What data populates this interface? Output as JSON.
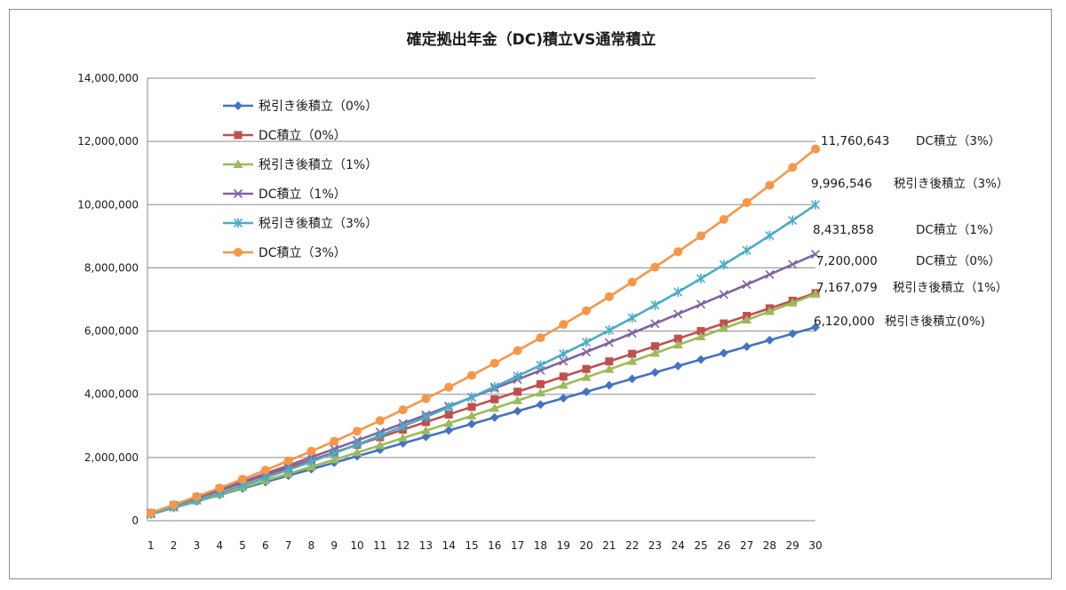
{
  "chart_data": {
    "type": "line",
    "title": "確定拠出年金（DC)積立VS通常積立",
    "xlabel": "",
    "ylabel": "",
    "categories": [
      "1",
      "2",
      "3",
      "4",
      "5",
      "6",
      "7",
      "8",
      "9",
      "10",
      "11",
      "12",
      "13",
      "14",
      "15",
      "16",
      "17",
      "18",
      "19",
      "20",
      "21",
      "22",
      "23",
      "24",
      "25",
      "26",
      "27",
      "28",
      "29",
      "30"
    ],
    "y_ticks": [
      "0",
      "2,000,000",
      "4,000,000",
      "6,000,000",
      "8,000,000",
      "10,000,000",
      "12,000,000",
      "14,000,000"
    ],
    "ylim": [
      0,
      14000000
    ],
    "grid": "horizontal",
    "legend_position": "top-left",
    "series": [
      {
        "name": "税引き後積立（0%）",
        "color": "#4472c4",
        "marker": "diamond",
        "end_value_label": "6,120,000",
        "end_series_label": "税引き後積立(0%)",
        "values": [
          204000,
          408000,
          612000,
          816000,
          1020000,
          1224000,
          1428000,
          1632000,
          1836000,
          2040000,
          2244000,
          2448000,
          2652000,
          2856000,
          3060000,
          3264000,
          3468000,
          3672000,
          3876000,
          4080000,
          4284000,
          4488000,
          4692000,
          4896000,
          5100000,
          5304000,
          5508000,
          5712000,
          5916000,
          6120000
        ]
      },
      {
        "name": "DC積立（0%）",
        "color": "#c0504d",
        "marker": "square",
        "end_value_label": "7,200,000",
        "end_series_label": "DC積立（0%）",
        "values": [
          240000,
          480000,
          720000,
          960000,
          1200000,
          1440000,
          1680000,
          1920000,
          2160000,
          2400000,
          2640000,
          2880000,
          3120000,
          3360000,
          3600000,
          3840000,
          4080000,
          4320000,
          4560000,
          4800000,
          5040000,
          5280000,
          5520000,
          5760000,
          6000000,
          6240000,
          6480000,
          6720000,
          6960000,
          7200000
        ]
      },
      {
        "name": "税引き後積立（1%）",
        "color": "#9bbb59",
        "marker": "triangle",
        "end_value_label": "7,167,079",
        "end_series_label": "税引き後積立（1%）",
        "values": [
          206040,
          414141,
          624322,
          836606,
          1051012,
          1267562,
          1486278,
          1707181,
          1930293,
          2155636,
          2383232,
          2613105,
          2845276,
          3079768,
          3316606,
          3555812,
          3797410,
          4041424,
          4287878,
          4536797,
          4788205,
          5042127,
          5298589,
          5557615,
          5819231,
          6083463,
          6350338,
          6619881,
          6892120,
          7167079
        ]
      },
      {
        "name": "DC積立（1%）",
        "color": "#8064a2",
        "marker": "x",
        "end_value_label": "8,431,858",
        "end_series_label": "DC積立（1%）",
        "values": [
          242400,
          487224,
          734496,
          984241,
          1236483,
          1491248,
          1748561,
          2008446,
          2270931,
          2536040,
          2803800,
          3074238,
          3347381,
          3623254,
          3901887,
          4183306,
          4467539,
          4754614,
          5044560,
          5337406,
          5633180,
          5931912,
          6233631,
          6538367,
          6846151,
          7157012,
          7470983,
          7788092,
          8108373,
          8431858
        ]
      },
      {
        "name": "税引き後積立（3%）",
        "color": "#4bacc6",
        "marker": "star",
        "end_value_label": "9,996,546",
        "end_series_label": "税引き後積立（3%）",
        "values": [
          210120,
          426544,
          649460,
          879064,
          1115556,
          1359143,
          1610037,
          1868458,
          2134632,
          2408791,
          2691175,
          2982031,
          3281612,
          3590181,
          3908006,
          4235366,
          4572547,
          4919843,
          5277558,
          5646005,
          6025505,
          6416390,
          6819002,
          7233692,
          7660823,
          8100768,
          8553911,
          9020648,
          9501387,
          9996546
        ]
      },
      {
        "name": "DC積立（3%）",
        "color": "#f79646",
        "marker": "circle",
        "end_value_label": "11,760,643",
        "end_series_label": "DC積立（3%）",
        "values": [
          247200,
          501816,
          764070,
          1034192,
          1312418,
          1598990,
          1894160,
          2198185,
          2511330,
          2833870,
          3166086,
          3508268,
          3860716,
          4223738,
          4597650,
          4982780,
          5379463,
          5788047,
          6208889,
          6642356,
          7088827,
          7548692,
          8022353,
          8510223,
          9012730,
          9530312,
          10063421,
          10612524,
          11178099,
          11760643
        ]
      }
    ]
  }
}
